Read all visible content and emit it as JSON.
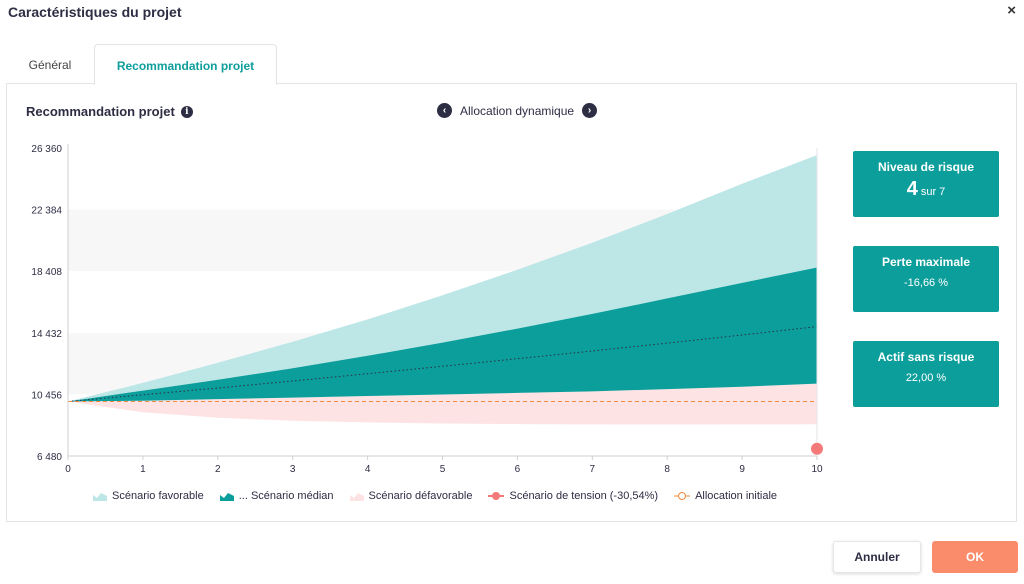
{
  "dialog": {
    "title": "Caractéristiques du projet",
    "close_glyph": "×"
  },
  "tabs": [
    {
      "label": "Général",
      "active": false
    },
    {
      "label": "Recommandation projet",
      "active": true
    }
  ],
  "panel": {
    "title": "Recommandation projet",
    "allocation_label": "Allocation dynamique"
  },
  "cards": {
    "risk": {
      "title": "Niveau de risque",
      "value": "4",
      "suffix": "sur 7"
    },
    "max_loss": {
      "title": "Perte maximale",
      "value": "-16,66 %"
    },
    "risk_free": {
      "title": "Actif sans risque",
      "value": "22,00 %"
    }
  },
  "legend": [
    {
      "label": "Scénario favorable",
      "icon": "area-icon",
      "color": "#bde6e6"
    },
    {
      "label": "... Scénario médian",
      "icon": "area-icon",
      "color": "#0c9e9b"
    },
    {
      "label": "Scénario défavorable",
      "icon": "area-icon",
      "color": "#fde3e3"
    },
    {
      "label": "Scénario de tension (-30,54%)",
      "icon": "dot-line-icon",
      "color": "#f47a7a"
    },
    {
      "label": "Allocation initiale",
      "icon": "dashed-circle-icon",
      "color": "#f08a3c"
    }
  ],
  "buttons": {
    "cancel": "Annuler",
    "ok": "OK"
  },
  "chart_data": {
    "type": "area",
    "x": [
      0,
      1,
      2,
      3,
      4,
      5,
      6,
      7,
      8,
      9,
      10
    ],
    "x_ticks": [
      "0",
      "1",
      "2",
      "3",
      "4",
      "5",
      "6",
      "7",
      "8",
      "9",
      "10"
    ],
    "y_ticks": [
      "6 480",
      "10 456",
      "14 432",
      "18 408",
      "22 384",
      "26 360"
    ],
    "ylim": [
      6480,
      26360
    ],
    "xlim": [
      0,
      10
    ],
    "start_value": 10000,
    "series": [
      {
        "name": "Scénario favorable",
        "color": "#bde6e6",
        "values": [
          10000,
          11200,
          12500,
          13850,
          15300,
          16850,
          18500,
          20250,
          22100,
          24050,
          25900
        ]
      },
      {
        "name": "Scénario médian",
        "color": "#0c9e9b",
        "values": [
          10000,
          10700,
          11400,
          12150,
          12950,
          13800,
          14700,
          15650,
          16650,
          17650,
          18650
        ]
      },
      {
        "name": "Scénario défavorable",
        "color": "#fde3e3",
        "values": [
          10000,
          9300,
          8950,
          8750,
          8650,
          8580,
          8540,
          8520,
          8510,
          8520,
          8530
        ]
      },
      {
        "name": "médian ligne",
        "color": "#2d2d44",
        "values": [
          10000,
          10430,
          10870,
          11320,
          11790,
          12270,
          12760,
          13260,
          13770,
          14290,
          14830
        ]
      },
      {
        "name": "Allocation initiale",
        "color": "#f08a3c",
        "values": [
          10000,
          10000,
          10000,
          10000,
          10000,
          10000,
          10000,
          10000,
          10000,
          10000,
          10000
        ]
      }
    ],
    "upper_unfavorable": [
      10000,
      10050,
      10150,
      10250,
      10350,
      10450,
      10550,
      10650,
      10800,
      10950,
      11150
    ],
    "stress_point": {
      "x": 10,
      "y": 6945,
      "color": "#f47a7a"
    },
    "bands_grey": true
  }
}
